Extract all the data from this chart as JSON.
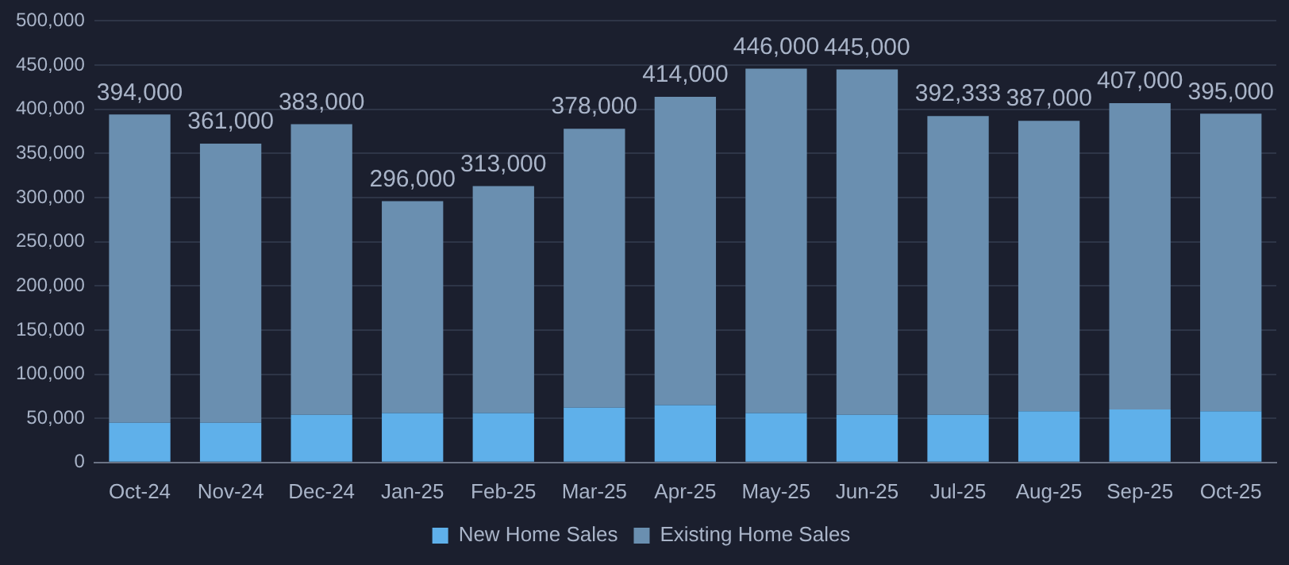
{
  "chart_data": {
    "type": "bar",
    "stacked": true,
    "categories": [
      "Oct-24",
      "Nov-24",
      "Dec-24",
      "Jan-25",
      "Feb-25",
      "Mar-25",
      "Apr-25",
      "May-25",
      "Jun-25",
      "Jul-25",
      "Aug-25",
      "Sep-25",
      "Oct-25"
    ],
    "series": [
      {
        "name": "New Home Sales",
        "color": "#5fb0ea",
        "values": [
          45000,
          45000,
          54000,
          56000,
          56000,
          62000,
          65000,
          56000,
          54000,
          54000,
          58000,
          60000,
          58000
        ]
      },
      {
        "name": "Existing Home Sales",
        "color": "#6a8fb0",
        "values": [
          349000,
          316000,
          329000,
          240000,
          257000,
          316000,
          349000,
          390000,
          391000,
          338333,
          329000,
          347000,
          337000
        ]
      }
    ],
    "totals": [
      "394,000",
      "361,000",
      "383,000",
      "296,000",
      "313,000",
      "378,000",
      "414,000",
      "446,000",
      "445,000",
      "392,333",
      "387,000",
      "407,000",
      "395,000"
    ],
    "ylim": [
      0,
      500000
    ],
    "yticks": [
      0,
      {
        "value": 50000,
        "label": "50,000"
      },
      {
        "value": 100000,
        "label": "100,000"
      },
      {
        "value": 150000,
        "label": "150,000"
      },
      {
        "value": 200000,
        "label": "200,000"
      },
      {
        "value": 250000,
        "label": "250,000"
      },
      {
        "value": 300000,
        "label": "300,000"
      },
      {
        "value": 350000,
        "label": "350,000"
      },
      {
        "value": 400000,
        "label": "400,000"
      },
      {
        "value": 450000,
        "label": "450,000"
      },
      {
        "value": 500000,
        "label": "500,000"
      }
    ],
    "grid": "y",
    "legend": "bottom"
  }
}
